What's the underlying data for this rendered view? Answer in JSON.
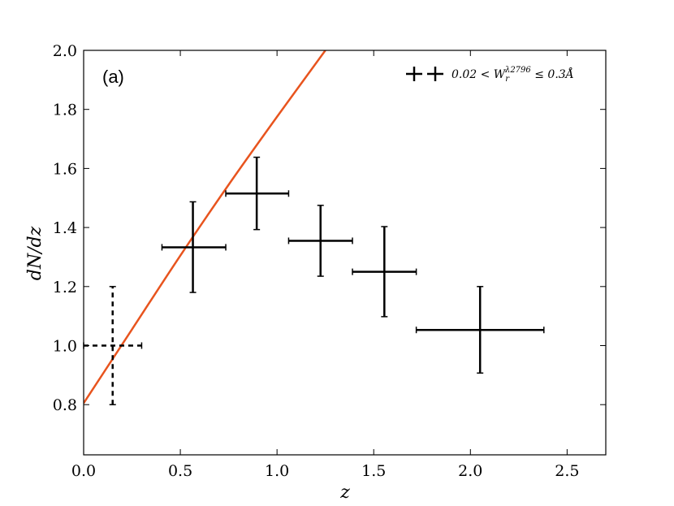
{
  "chart_data": {
    "type": "scatter",
    "panel_label": "(a)",
    "xlabel": "z",
    "ylabel": "dN/dz",
    "xlim": [
      0.0,
      2.7
    ],
    "ylim": [
      0.63,
      2.0
    ],
    "xticks": [
      "0.0",
      "0.5",
      "1.0",
      "1.5",
      "2.0",
      "2.5"
    ],
    "yticks": [
      "0.8",
      "1.0",
      "1.2",
      "1.4",
      "1.6",
      "1.8",
      "2.0"
    ],
    "grid": false,
    "legend": {
      "placement": "top-right",
      "label": "0.02 < W_r^{λ2796} ≤ 0.3Å"
    },
    "series": [
      {
        "style": "solid",
        "points": [
          {
            "x": 0.565,
            "y": 1.333,
            "xerr": [
              0.405,
              0.735
            ],
            "yerr": [
              1.18,
              1.487
            ]
          },
          {
            "x": 0.895,
            "y": 1.515,
            "xerr": [
              0.735,
              1.06
            ],
            "yerr": [
              1.393,
              1.638
            ]
          },
          {
            "x": 1.225,
            "y": 1.355,
            "xerr": [
              1.06,
              1.39
            ],
            "yerr": [
              1.235,
              1.475
            ]
          },
          {
            "x": 1.555,
            "y": 1.25,
            "xerr": [
              1.39,
              1.72
            ],
            "yerr": [
              1.098,
              1.403
            ]
          },
          {
            "x": 2.05,
            "y": 1.053,
            "xerr": [
              1.72,
              2.38
            ],
            "yerr": [
              0.907,
              1.2
            ]
          }
        ]
      },
      {
        "style": "dashed",
        "points": [
          {
            "x": 0.15,
            "y": 1.0,
            "xerr": [
              0.0,
              0.3
            ],
            "yerr": [
              0.8,
              1.2
            ]
          }
        ]
      }
    ],
    "curve": {
      "color": "#e8541e",
      "x": [
        0.0,
        0.25,
        0.5,
        0.75,
        1.0,
        1.25
      ],
      "y": [
        0.805,
        1.055,
        1.305,
        1.545,
        1.775,
        2.0
      ]
    }
  }
}
